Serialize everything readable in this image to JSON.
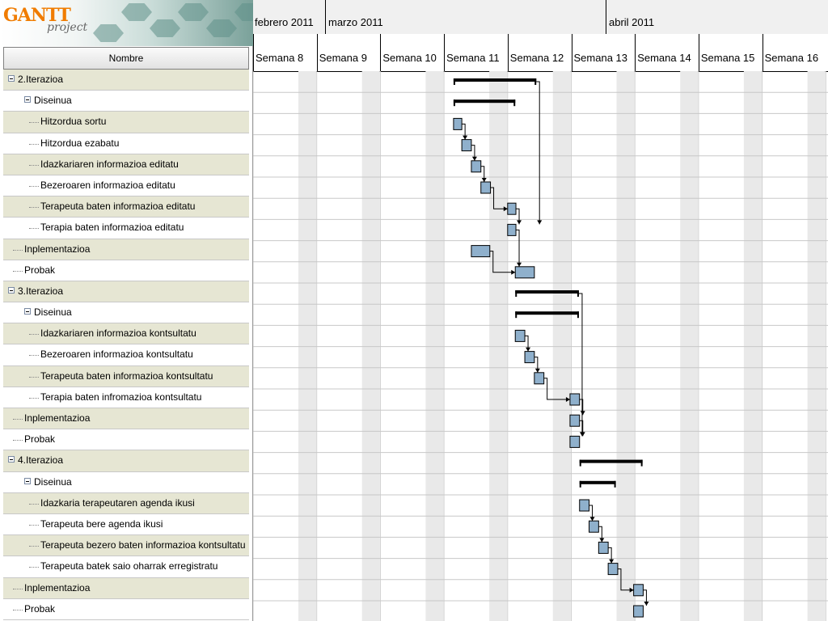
{
  "logo": {
    "main": "GANTT",
    "sub": "project"
  },
  "tree": {
    "column_header": "Nombre",
    "rows": [
      {
        "label": "2.Iterazioa",
        "level": 0,
        "expander": true
      },
      {
        "label": "Diseinua",
        "level": 1,
        "expander": true
      },
      {
        "label": "Hitzordua sortu",
        "level": 2
      },
      {
        "label": "Hitzordua ezabatu",
        "level": 2
      },
      {
        "label": "Idazkariaren informazioa editatu",
        "level": 2
      },
      {
        "label": "Bezeroaren informazioa editatu",
        "level": 2
      },
      {
        "label": "Terapeuta baten informazioa editatu",
        "level": 2
      },
      {
        "label": "Terapia baten informazioa editatu",
        "level": 2
      },
      {
        "label": "Inplementazioa",
        "level": 1
      },
      {
        "label": "Probak",
        "level": 1
      },
      {
        "label": "3.Iterazioa",
        "level": 0,
        "expander": true
      },
      {
        "label": "Diseinua",
        "level": 1,
        "expander": true
      },
      {
        "label": "Idazkariaren informazioa kontsultatu",
        "level": 2
      },
      {
        "label": "Bezeroaren informazioa kontsultatu",
        "level": 2
      },
      {
        "label": "Terapeuta baten informazioa kontsultatu",
        "level": 2
      },
      {
        "label": "Terapia baten infromazioa kontsultatu",
        "level": 2
      },
      {
        "label": "Inplementazioa",
        "level": 1
      },
      {
        "label": "Probak",
        "level": 1
      },
      {
        "label": "4.Iterazioa",
        "level": 0,
        "expander": true
      },
      {
        "label": "Diseinua",
        "level": 1,
        "expander": true
      },
      {
        "label": "Idazkaria terapeutaren agenda ikusi",
        "level": 2
      },
      {
        "label": "Terapeuta bere agenda ikusi",
        "level": 2
      },
      {
        "label": "Terapeuta bezero baten informazioa kontsultatu",
        "level": 2
      },
      {
        "label": "Terapeuta batek saio oharrak erregistratu",
        "level": 2
      },
      {
        "label": "Inplementazioa",
        "level": 1
      },
      {
        "label": "Probak",
        "level": 1
      }
    ]
  },
  "timeline": {
    "months": [
      "febrero 2011",
      "marzo 2011",
      "abril 2011"
    ],
    "weeks": [
      "Semana 8",
      "Semana 9",
      "Semana 10",
      "Semana 11",
      "Semana 12",
      "Semana 13",
      "Semana 14",
      "Semana 15",
      "Semana 16"
    ]
  },
  "tasks": [
    {
      "row": 0,
      "type": "summary",
      "start": 3.15,
      "end": 4.45
    },
    {
      "row": 1,
      "type": "summary",
      "start": 3.15,
      "end": 4.12
    },
    {
      "row": 2,
      "type": "task",
      "start": 3.15,
      "end": 3.28
    },
    {
      "row": 3,
      "type": "task",
      "start": 3.28,
      "end": 3.43
    },
    {
      "row": 4,
      "type": "task",
      "start": 3.43,
      "end": 3.58
    },
    {
      "row": 5,
      "type": "task",
      "start": 3.58,
      "end": 3.73
    },
    {
      "row": 6,
      "type": "task",
      "start": 4.0,
      "end": 4.13
    },
    {
      "row": 7,
      "type": "task",
      "start": 4.0,
      "end": 4.13
    },
    {
      "row": 8,
      "type": "task",
      "start": 3.43,
      "end": 3.72
    },
    {
      "row": 9,
      "type": "task",
      "start": 4.12,
      "end": 4.42
    },
    {
      "row": 10,
      "type": "summary",
      "start": 4.12,
      "end": 5.12
    },
    {
      "row": 11,
      "type": "summary",
      "start": 4.12,
      "end": 5.12
    },
    {
      "row": 12,
      "type": "task",
      "start": 4.12,
      "end": 4.27
    },
    {
      "row": 13,
      "type": "task",
      "start": 4.27,
      "end": 4.42
    },
    {
      "row": 14,
      "type": "task",
      "start": 4.42,
      "end": 4.57
    },
    {
      "row": 15,
      "type": "task",
      "start": 4.98,
      "end": 5.13
    },
    {
      "row": 16,
      "type": "task",
      "start": 4.98,
      "end": 5.13
    },
    {
      "row": 17,
      "type": "task",
      "start": 4.98,
      "end": 5.13
    },
    {
      "row": 18,
      "type": "summary",
      "start": 5.13,
      "end": 6.12
    },
    {
      "row": 19,
      "type": "summary",
      "start": 5.13,
      "end": 5.7
    },
    {
      "row": 20,
      "type": "task",
      "start": 5.13,
      "end": 5.28
    },
    {
      "row": 21,
      "type": "task",
      "start": 5.28,
      "end": 5.43
    },
    {
      "row": 22,
      "type": "task",
      "start": 5.43,
      "end": 5.58
    },
    {
      "row": 23,
      "type": "task",
      "start": 5.58,
      "end": 5.73
    },
    {
      "row": 24,
      "type": "task",
      "start": 5.98,
      "end": 6.13
    },
    {
      "row": 25,
      "type": "task",
      "start": 5.98,
      "end": 6.13
    }
  ],
  "links": [
    [
      2,
      3
    ],
    [
      3,
      4
    ],
    [
      4,
      5
    ],
    [
      5,
      6
    ],
    [
      6,
      7
    ],
    [
      0,
      7
    ],
    [
      8,
      9
    ],
    [
      7,
      9
    ],
    [
      12,
      13
    ],
    [
      13,
      14
    ],
    [
      14,
      15
    ],
    [
      15,
      16
    ],
    [
      16,
      17
    ],
    [
      10,
      17
    ],
    [
      20,
      21
    ],
    [
      21,
      22
    ],
    [
      22,
      23
    ],
    [
      23,
      24
    ],
    [
      24,
      25
    ]
  ],
  "colors": {
    "task_fill": "#8fb0cc",
    "task_border": "#000000",
    "summary": "#000000",
    "shade": "#e6e6d3",
    "weekend": "#e9e9e9"
  }
}
